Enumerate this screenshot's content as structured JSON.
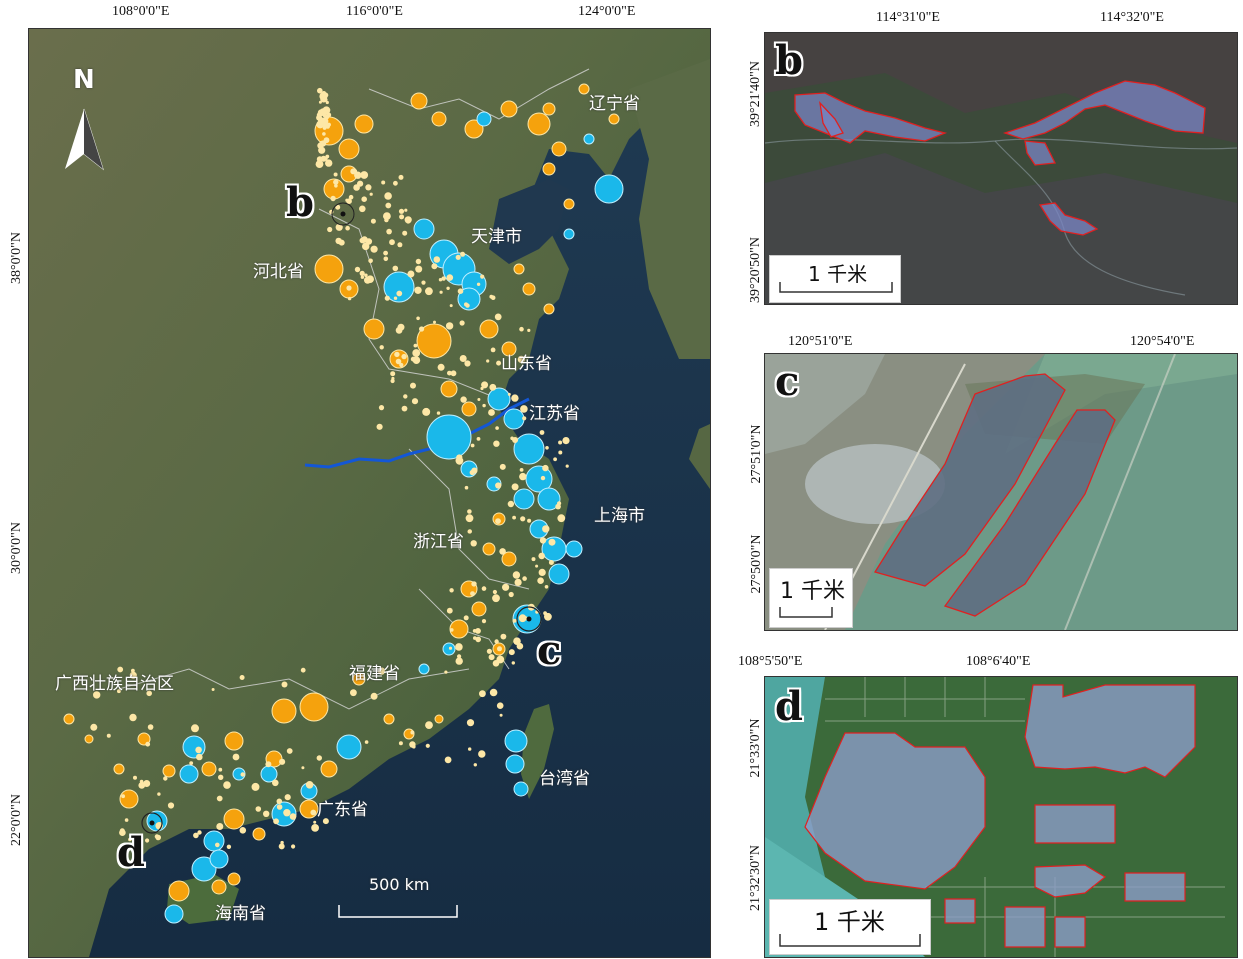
{
  "main_map": {
    "top_coords": [
      "108°0'0\"E",
      "116°0'0\"E",
      "124°0'0\"E"
    ],
    "left_coords": [
      "38°0'0\"N",
      "30°0'0\"N",
      "22°0'0\"N"
    ],
    "north_label": "N",
    "scale_label": "500 km",
    "provinces": [
      "辽宁省",
      "天津市",
      "河北省",
      "山东省",
      "江苏省",
      "上海市",
      "浙江省",
      "福建省",
      "广西壮族自治区",
      "广东省",
      "台湾省",
      "海南省"
    ],
    "site_letters": [
      "b",
      "c",
      "d"
    ],
    "colors": {
      "orange": "#f5a20d",
      "blue": "#1ab8ea",
      "river": "#1357d6"
    }
  },
  "panel_b": {
    "letter": "b",
    "top_coords": [
      "114°31'0\"E",
      "114°32'0\"E"
    ],
    "left_coords": [
      "39°21'40\"N",
      "39°20'50\"N"
    ],
    "scale_label": "1 千米"
  },
  "panel_c": {
    "letter": "c",
    "top_coords": [
      "120°51'0\"E",
      "120°54'0\"E"
    ],
    "left_coords": [
      "27°51'0\"N",
      "27°50'0\"N"
    ],
    "scale_label": "1 千米"
  },
  "panel_d": {
    "letter": "d",
    "top_coords": [
      "108°5'50\"E",
      "108°6'40\"E"
    ],
    "left_coords": [
      "21°33'0\"N",
      "21°32'30\"N"
    ],
    "scale_label": "1 千米"
  },
  "outline_color": "#e02020"
}
